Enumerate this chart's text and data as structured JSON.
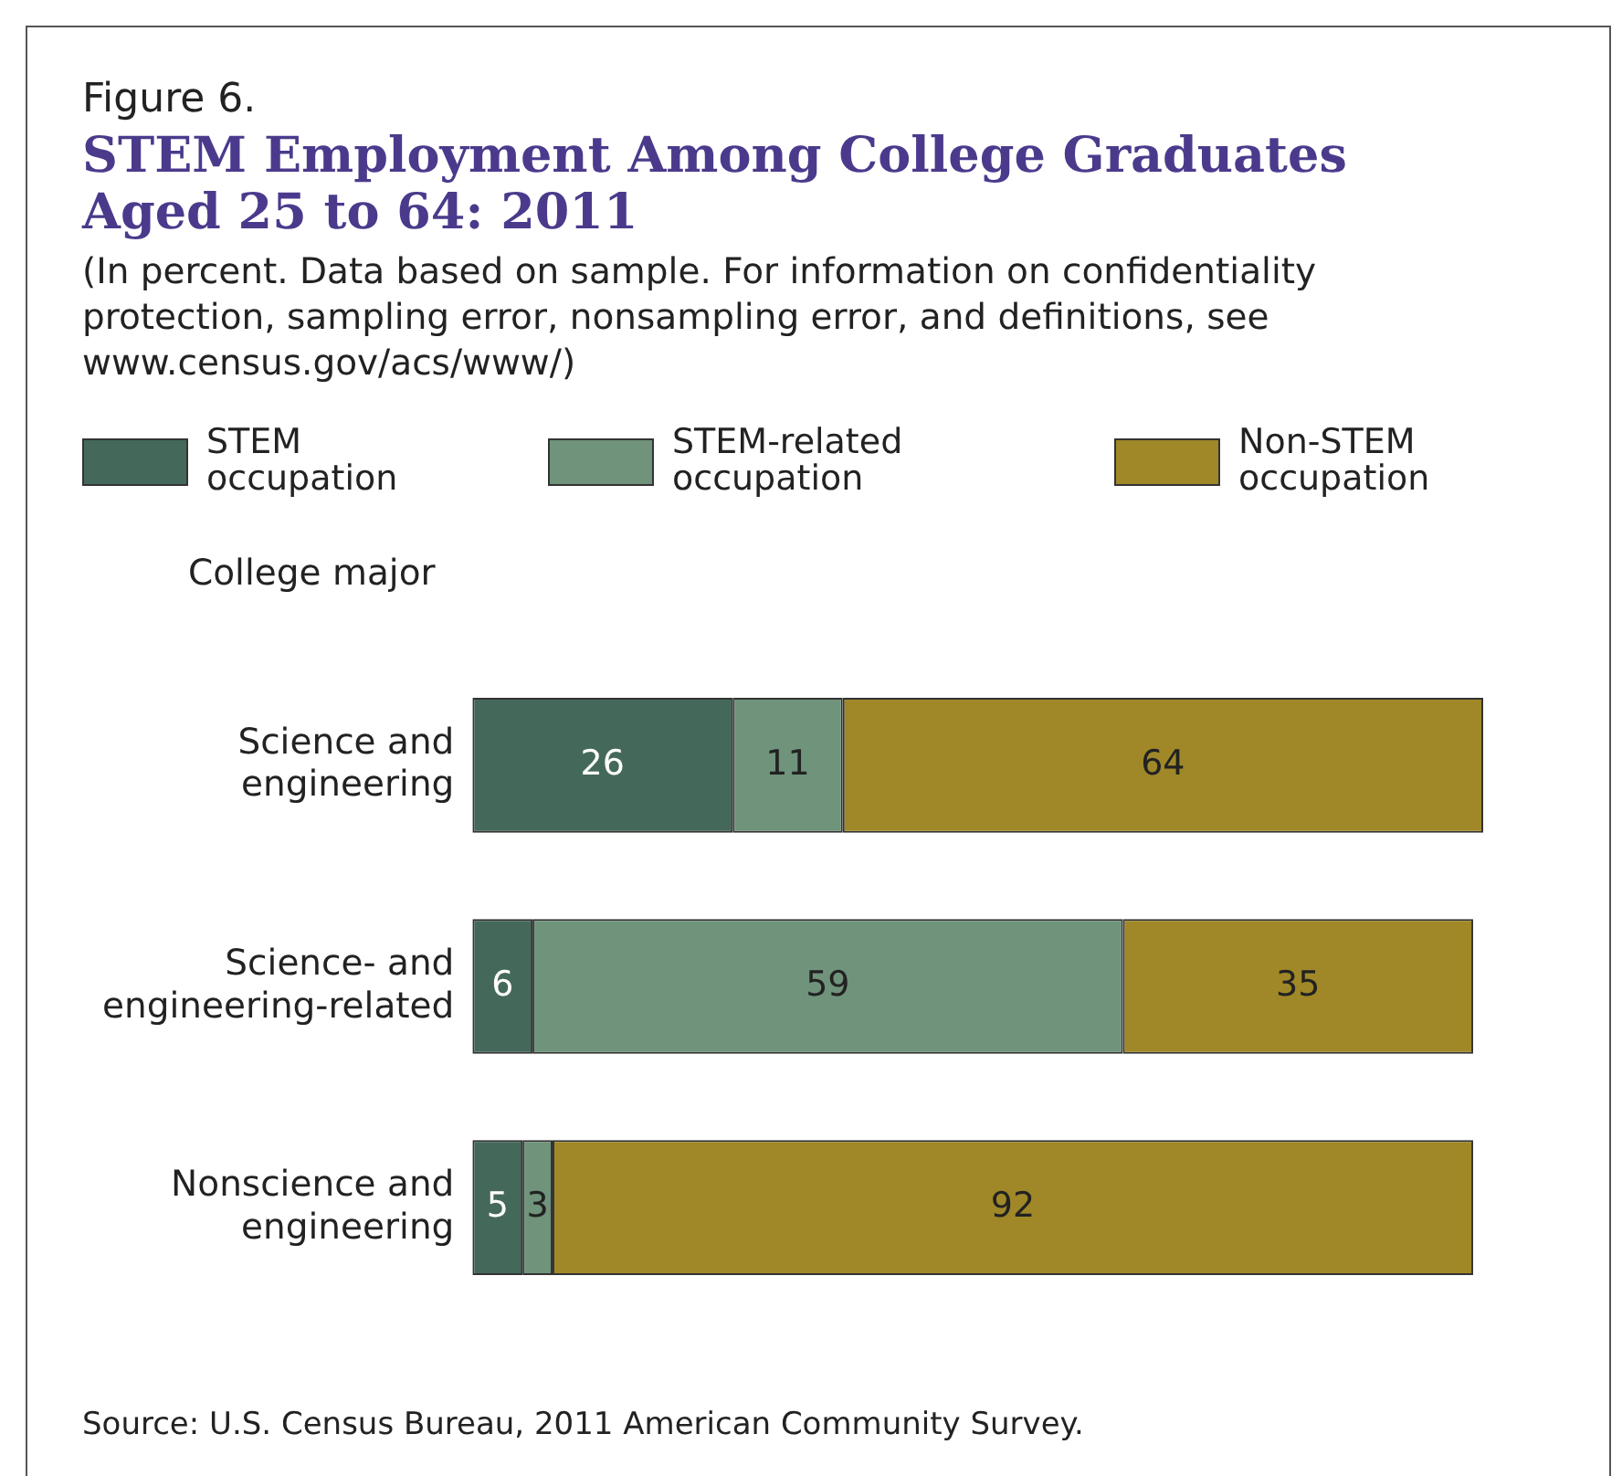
{
  "chart_data": {
    "type": "bar",
    "orientation": "horizontal",
    "stacked": true,
    "data_labels": true,
    "legend": "top",
    "tick_labels": "y",
    "title": "STEM Employment Among College Graduates Aged 25 to 64: 2011",
    "subtitle": "Figure 6.",
    "annotations": [
      "(In percent. Data based on sample. For information on confidentiality protection, sampling error, nonsampling error, and definitions, see www.census.gov/acs/www/)",
      "Source: U.S. Census Bureau, 2011 American Community Survey."
    ],
    "ylabel": "College major",
    "categories": [
      "Science and engineering",
      "Science- and engineering-related",
      "Nonscience and engineering"
    ],
    "series": [
      {
        "name": "STEM occupation",
        "color": "#44695a",
        "values": [
          26,
          6,
          5
        ]
      },
      {
        "name": "STEM-related occupation",
        "color": "#6f937b",
        "values": [
          11,
          59,
          3
        ]
      },
      {
        "name": "Non-STEM occupation",
        "color": "#a08828",
        "values": [
          64,
          35,
          92
        ]
      }
    ]
  }
}
